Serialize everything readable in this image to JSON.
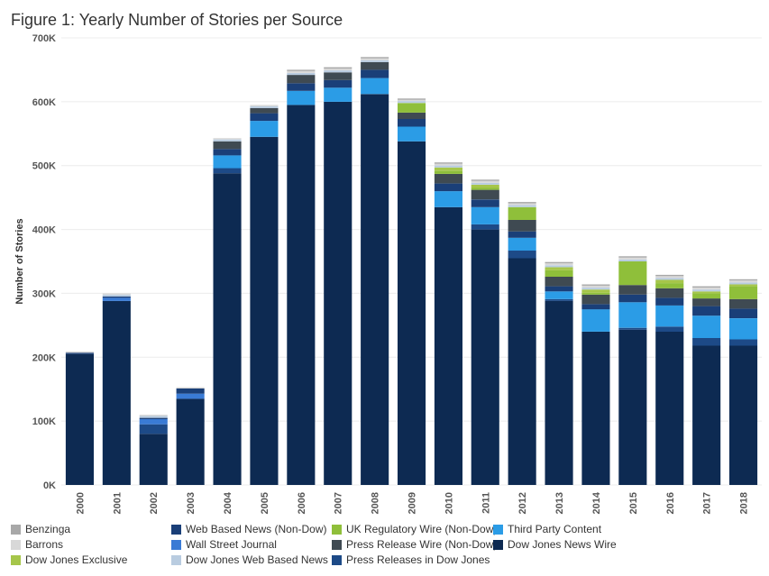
{
  "title": "Figure 1: Yearly Number of Stories per Source",
  "chart_data": {
    "type": "bar",
    "stacked": true,
    "title": "Figure 1: Yearly Number of Stories per Source",
    "xlabel": "",
    "ylabel": "Number of Stories",
    "ylim": [
      0,
      700000
    ],
    "yticks": [
      0,
      100000,
      200000,
      300000,
      400000,
      500000,
      600000,
      700000
    ],
    "ytick_labels": [
      "0K",
      "100K",
      "200K",
      "300K",
      "400K",
      "500K",
      "600K",
      "700K"
    ],
    "grid": "horizontal",
    "legend_position": "bottom",
    "categories": [
      "2000",
      "2001",
      "2002",
      "2003",
      "2004",
      "2005",
      "2006",
      "2007",
      "2008",
      "2009",
      "2010",
      "2011",
      "2012",
      "2013",
      "2014",
      "2015",
      "2016",
      "2017",
      "2018"
    ],
    "series": [
      {
        "name": "Dow Jones News Wire",
        "color": "#0d2a52",
        "values": [
          205000,
          288000,
          80000,
          135000,
          488000,
          545000,
          595000,
          600000,
          612000,
          538000,
          435000,
          400000,
          355000,
          288000,
          240000,
          243000,
          240000,
          218000,
          218000
        ]
      },
      {
        "name": "Press Releases in Dow Jones",
        "color": "#1d4a87",
        "values": [
          0,
          0,
          15000,
          0,
          8000,
          0,
          0,
          0,
          0,
          0,
          0,
          8000,
          12000,
          3000,
          0,
          3000,
          8000,
          12000,
          10000
        ]
      },
      {
        "name": "Third Party Content",
        "color": "#2b9ce6",
        "values": [
          0,
          0,
          0,
          0,
          20000,
          25000,
          22000,
          22000,
          25000,
          23000,
          25000,
          27000,
          20000,
          12000,
          35000,
          40000,
          33000,
          35000,
          33000
        ]
      },
      {
        "name": "Wall Street Journal",
        "color": "#3a7bd5",
        "values": [
          0,
          5000,
          8000,
          8000,
          0,
          0,
          0,
          0,
          0,
          0,
          0,
          0,
          0,
          0,
          0,
          0,
          0,
          0,
          0
        ]
      },
      {
        "name": "Web Based News (Non-Dow)",
        "color": "#1a3f78",
        "values": [
          2000,
          2000,
          2000,
          8000,
          10000,
          12000,
          12000,
          12000,
          13000,
          12000,
          12000,
          12000,
          10000,
          8000,
          8000,
          12000,
          12000,
          15000,
          15000
        ]
      },
      {
        "name": "Press Release Wire (Non-Dow)",
        "color": "#3f4a52",
        "values": [
          0,
          0,
          0,
          0,
          12000,
          8000,
          13000,
          12000,
          12000,
          10000,
          15000,
          15000,
          18000,
          15000,
          15000,
          15000,
          15000,
          12000,
          15000
        ]
      },
      {
        "name": "UK Regulatory Wire (Non-Dow)",
        "color": "#8fbf3a",
        "values": [
          0,
          0,
          0,
          0,
          0,
          0,
          0,
          0,
          0,
          15000,
          5000,
          3000,
          20000,
          10000,
          3000,
          37000,
          8000,
          8000,
          20000
        ]
      },
      {
        "name": "Dow Jones Exclusive",
        "color": "#a6c64a",
        "values": [
          0,
          0,
          0,
          0,
          0,
          0,
          0,
          0,
          0,
          0,
          5000,
          5000,
          0,
          5000,
          5000,
          0,
          5000,
          3000,
          3000
        ]
      },
      {
        "name": "Dow Jones Web Based News",
        "color": "#b9cce0",
        "values": [
          0,
          3000,
          3000,
          0,
          3000,
          3000,
          3000,
          3000,
          3000,
          3000,
          3000,
          3000,
          3000,
          3000,
          3000,
          3000,
          3000,
          3000,
          3000
        ]
      },
      {
        "name": "Barrons",
        "color": "#d8d8d8",
        "values": [
          2000,
          2000,
          2000,
          2000,
          2000,
          2000,
          3000,
          3000,
          3000,
          2000,
          3000,
          3000,
          3000,
          3000,
          3000,
          3000,
          3000,
          3000,
          3000
        ]
      },
      {
        "name": "Benzinga",
        "color": "#a8a8a8",
        "values": [
          0,
          0,
          0,
          0,
          0,
          0,
          2000,
          2000,
          2000,
          2000,
          2000,
          2000,
          2000,
          2000,
          2000,
          2000,
          2000,
          2000,
          2000
        ]
      }
    ],
    "legend": [
      {
        "name": "Benzinga",
        "color": "#a8a8a8"
      },
      {
        "name": "Barrons",
        "color": "#d8d8d8"
      },
      {
        "name": "Dow Jones Exclusive",
        "color": "#a6c64a"
      },
      {
        "name": "Web Based News (Non-Dow)",
        "color": "#1a3f78"
      },
      {
        "name": "Wall Street Journal",
        "color": "#3a7bd5"
      },
      {
        "name": "Dow Jones Web Based News",
        "color": "#b9cce0"
      },
      {
        "name": "UK Regulatory Wire (Non-Dow)",
        "color": "#8fbf3a"
      },
      {
        "name": "Press Release Wire (Non-Dow)",
        "color": "#3f4a52"
      },
      {
        "name": "Press Releases in Dow Jones",
        "color": "#1d4a87"
      },
      {
        "name": "Third Party Content",
        "color": "#2b9ce6"
      },
      {
        "name": "Dow Jones News Wire",
        "color": "#0d2a52"
      }
    ]
  }
}
